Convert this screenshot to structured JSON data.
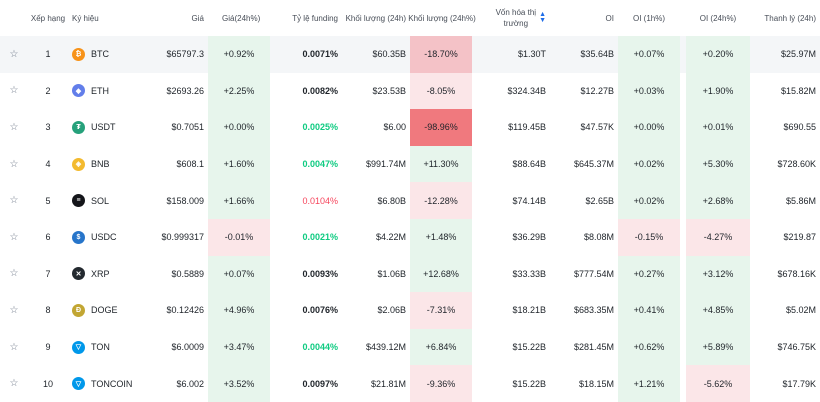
{
  "headers": {
    "rank": "Xếp hạng",
    "symbol": "Ký hiệu",
    "price": "Giá",
    "price24": "Giá(24h%)",
    "funding": "Tỷ lệ funding",
    "volume": "Khối lượng (24h)",
    "volume24": "Khối lượng (24h%)",
    "mcap_line1": "Vốn hóa thị",
    "mcap_line2": "trường",
    "oi": "OI",
    "oi1h": "OI (1h%)",
    "oi24": "OI (24h%)",
    "liq": "Thanh lý (24h)"
  },
  "colors": {
    "green_bg": "#e7f5ec",
    "red_bg": "#fbe6e8",
    "red_mid": "#f4c2c7",
    "red_strong": "#f0797e",
    "btc": "#f7931a",
    "eth": "#627eea",
    "usdt": "#26a17b",
    "bnb": "#f3ba2f",
    "sol": "#14151a",
    "usdc": "#2775ca",
    "xrp": "#23292f",
    "doge": "#c2a633",
    "ton": "#0098ea"
  },
  "rows": [
    {
      "rank": "1",
      "icon": "btc-icon",
      "glyph": "₿",
      "color": "btc",
      "symbol": "BTC",
      "price": "$65797.3",
      "price24": "+0.92%",
      "price24_bg": "green",
      "funding": "0.0071%",
      "funding_style": "dark",
      "volume": "$60.35B",
      "volume24": "-18.70%",
      "volume24_bg": "red_mid",
      "mcap": "$1.30T",
      "oi": "$35.64B",
      "oi1h": "+0.07%",
      "oi1h_bg": "green",
      "oi24": "+0.20%",
      "oi24_bg": "green",
      "liq": "$25.97M"
    },
    {
      "rank": "2",
      "icon": "eth-icon",
      "glyph": "◆",
      "color": "eth",
      "symbol": "ETH",
      "price": "$2693.26",
      "price24": "+2.25%",
      "price24_bg": "green",
      "funding": "0.0082%",
      "funding_style": "dark",
      "volume": "$23.53B",
      "volume24": "-8.05%",
      "volume24_bg": "red",
      "mcap": "$324.34B",
      "oi": "$12.27B",
      "oi1h": "+0.03%",
      "oi1h_bg": "green",
      "oi24": "+1.90%",
      "oi24_bg": "green",
      "liq": "$15.82M"
    },
    {
      "rank": "3",
      "icon": "usdt-icon",
      "glyph": "₮",
      "color": "usdt",
      "symbol": "USDT",
      "price": "$0.7051",
      "price24": "+0.00%",
      "price24_bg": "green",
      "funding": "0.0025%",
      "funding_style": "green",
      "volume": "$6.00",
      "volume24": "-98.96%",
      "volume24_bg": "red_strong",
      "mcap": "$119.45B",
      "oi": "$47.57K",
      "oi1h": "+0.00%",
      "oi1h_bg": "green",
      "oi24": "+0.01%",
      "oi24_bg": "green",
      "liq": "$690.55"
    },
    {
      "rank": "4",
      "icon": "bnb-icon",
      "glyph": "◈",
      "color": "bnb",
      "symbol": "BNB",
      "price": "$608.1",
      "price24": "+1.60%",
      "price24_bg": "green",
      "funding": "0.0047%",
      "funding_style": "green",
      "volume": "$991.74M",
      "volume24": "+11.30%",
      "volume24_bg": "green",
      "mcap": "$88.64B",
      "oi": "$645.37M",
      "oi1h": "+0.02%",
      "oi1h_bg": "green",
      "oi24": "+5.30%",
      "oi24_bg": "green",
      "liq": "$728.60K"
    },
    {
      "rank": "5",
      "icon": "sol-icon",
      "glyph": "≡",
      "color": "sol",
      "symbol": "SOL",
      "price": "$158.009",
      "price24": "+1.66%",
      "price24_bg": "green",
      "funding": "0.0104%",
      "funding_style": "red",
      "volume": "$6.80B",
      "volume24": "-12.28%",
      "volume24_bg": "red",
      "mcap": "$74.14B",
      "oi": "$2.65B",
      "oi1h": "+0.02%",
      "oi1h_bg": "green",
      "oi24": "+2.68%",
      "oi24_bg": "green",
      "liq": "$5.86M"
    },
    {
      "rank": "6",
      "icon": "usdc-icon",
      "glyph": "$",
      "color": "usdc",
      "symbol": "USDC",
      "price": "$0.999317",
      "price24": "-0.01%",
      "price24_bg": "red",
      "funding": "0.0021%",
      "funding_style": "green",
      "volume": "$4.22M",
      "volume24": "+1.48%",
      "volume24_bg": "green",
      "mcap": "$36.29B",
      "oi": "$8.08M",
      "oi1h": "-0.15%",
      "oi1h_bg": "red",
      "oi24": "-4.27%",
      "oi24_bg": "red",
      "liq": "$219.87"
    },
    {
      "rank": "7",
      "icon": "xrp-icon",
      "glyph": "✕",
      "color": "xrp",
      "symbol": "XRP",
      "price": "$0.5889",
      "price24": "+0.07%",
      "price24_bg": "green",
      "funding": "0.0093%",
      "funding_style": "dark",
      "volume": "$1.06B",
      "volume24": "+12.68%",
      "volume24_bg": "green",
      "mcap": "$33.33B",
      "oi": "$777.54M",
      "oi1h": "+0.27%",
      "oi1h_bg": "green",
      "oi24": "+3.12%",
      "oi24_bg": "green",
      "liq": "$678.16K"
    },
    {
      "rank": "8",
      "icon": "doge-icon",
      "glyph": "Ð",
      "color": "doge",
      "symbol": "DOGE",
      "price": "$0.12426",
      "price24": "+4.96%",
      "price24_bg": "green",
      "funding": "0.0076%",
      "funding_style": "dark",
      "volume": "$2.06B",
      "volume24": "-7.31%",
      "volume24_bg": "red",
      "mcap": "$18.21B",
      "oi": "$683.35M",
      "oi1h": "+0.41%",
      "oi1h_bg": "green",
      "oi24": "+4.85%",
      "oi24_bg": "green",
      "liq": "$5.02M"
    },
    {
      "rank": "9",
      "icon": "ton-icon",
      "glyph": "▽",
      "color": "ton",
      "symbol": "TON",
      "price": "$6.0009",
      "price24": "+3.47%",
      "price24_bg": "green",
      "funding": "0.0044%",
      "funding_style": "green",
      "volume": "$439.12M",
      "volume24": "+6.84%",
      "volume24_bg": "green",
      "mcap": "$15.22B",
      "oi": "$281.45M",
      "oi1h": "+0.62%",
      "oi1h_bg": "green",
      "oi24": "+5.89%",
      "oi24_bg": "green",
      "liq": "$746.75K"
    },
    {
      "rank": "10",
      "icon": "toncoin-icon",
      "glyph": "▽",
      "color": "ton",
      "symbol": "TONCOIN",
      "price": "$6.002",
      "price24": "+3.52%",
      "price24_bg": "green",
      "funding": "0.0097%",
      "funding_style": "dark",
      "volume": "$21.81M",
      "volume24": "-9.36%",
      "volume24_bg": "red",
      "mcap": "$15.22B",
      "oi": "$18.15M",
      "oi1h": "+1.21%",
      "oi1h_bg": "green",
      "oi24": "-5.62%",
      "oi24_bg": "red",
      "liq": "$17.79K"
    }
  ]
}
